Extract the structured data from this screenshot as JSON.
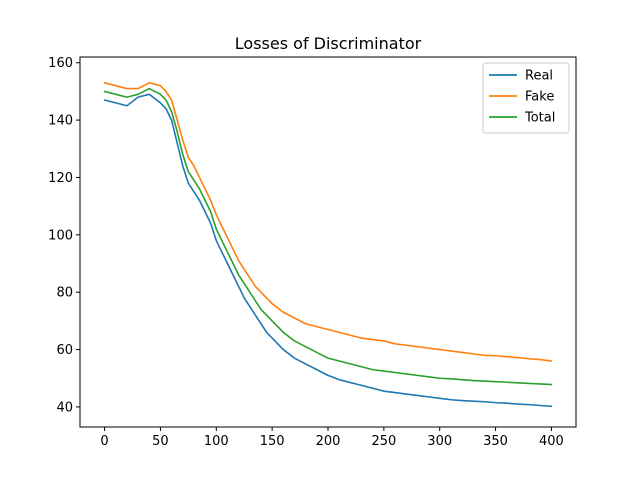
{
  "chart_data": {
    "type": "line",
    "title": "Losses of Discriminator",
    "xlabel": "",
    "ylabel": "",
    "xlim": [
      -22,
      422
    ],
    "ylim": [
      33,
      162
    ],
    "xticks": [
      0,
      50,
      100,
      150,
      200,
      250,
      300,
      350,
      400
    ],
    "yticks": [
      40,
      60,
      80,
      100,
      120,
      140,
      160
    ],
    "grid": false,
    "legend_position": "top-right",
    "x": [
      0,
      10,
      20,
      30,
      40,
      50,
      55,
      60,
      65,
      70,
      75,
      80,
      85,
      90,
      95,
      100,
      105,
      110,
      115,
      120,
      125,
      130,
      135,
      140,
      145,
      150,
      160,
      170,
      180,
      190,
      200,
      210,
      220,
      230,
      240,
      250,
      260,
      270,
      280,
      290,
      300,
      310,
      320,
      330,
      340,
      350,
      360,
      370,
      380,
      390,
      400
    ],
    "series": [
      {
        "name": "Real",
        "color": "#1f77b4",
        "values": [
          147,
          146,
          145,
          148,
          149,
          146,
          144,
          140,
          132,
          124,
          118,
          115,
          112,
          108,
          104,
          98,
          94,
          90,
          86,
          82,
          78,
          75,
          72,
          69,
          66,
          64,
          60,
          57,
          55,
          53,
          51,
          49.5,
          48.5,
          47.5,
          46.5,
          45.5,
          45,
          44.5,
          44,
          43.5,
          43,
          42.5,
          42.2,
          42,
          41.8,
          41.5,
          41.3,
          41,
          40.8,
          40.5,
          40.2
        ]
      },
      {
        "name": "Fake",
        "color": "#ff7f0e",
        "values": [
          153,
          152,
          151,
          151,
          153,
          152,
          150,
          147,
          140,
          133,
          127,
          124,
          120,
          116,
          112,
          107,
          103,
          99,
          95,
          91,
          88,
          85,
          82,
          80,
          78,
          76,
          73,
          71,
          69,
          68,
          67,
          66,
          65,
          64,
          63.5,
          63,
          62,
          61.5,
          61,
          60.5,
          60,
          59.5,
          59,
          58.5,
          58,
          57.8,
          57.5,
          57.2,
          56.8,
          56.5,
          56
        ]
      },
      {
        "name": "Total",
        "color": "#2ca02c",
        "values": [
          150,
          149,
          148,
          149,
          151,
          149,
          147,
          143,
          136,
          128,
          122,
          119,
          116,
          112,
          108,
          102,
          98,
          94,
          90,
          86,
          83,
          80,
          77,
          74,
          72,
          70,
          66,
          63,
          61,
          59,
          57,
          56,
          55,
          54,
          53,
          52.5,
          52,
          51.5,
          51,
          50.5,
          50,
          49.8,
          49.5,
          49.2,
          49,
          48.8,
          48.6,
          48.4,
          48.2,
          48,
          47.8
        ]
      }
    ]
  }
}
